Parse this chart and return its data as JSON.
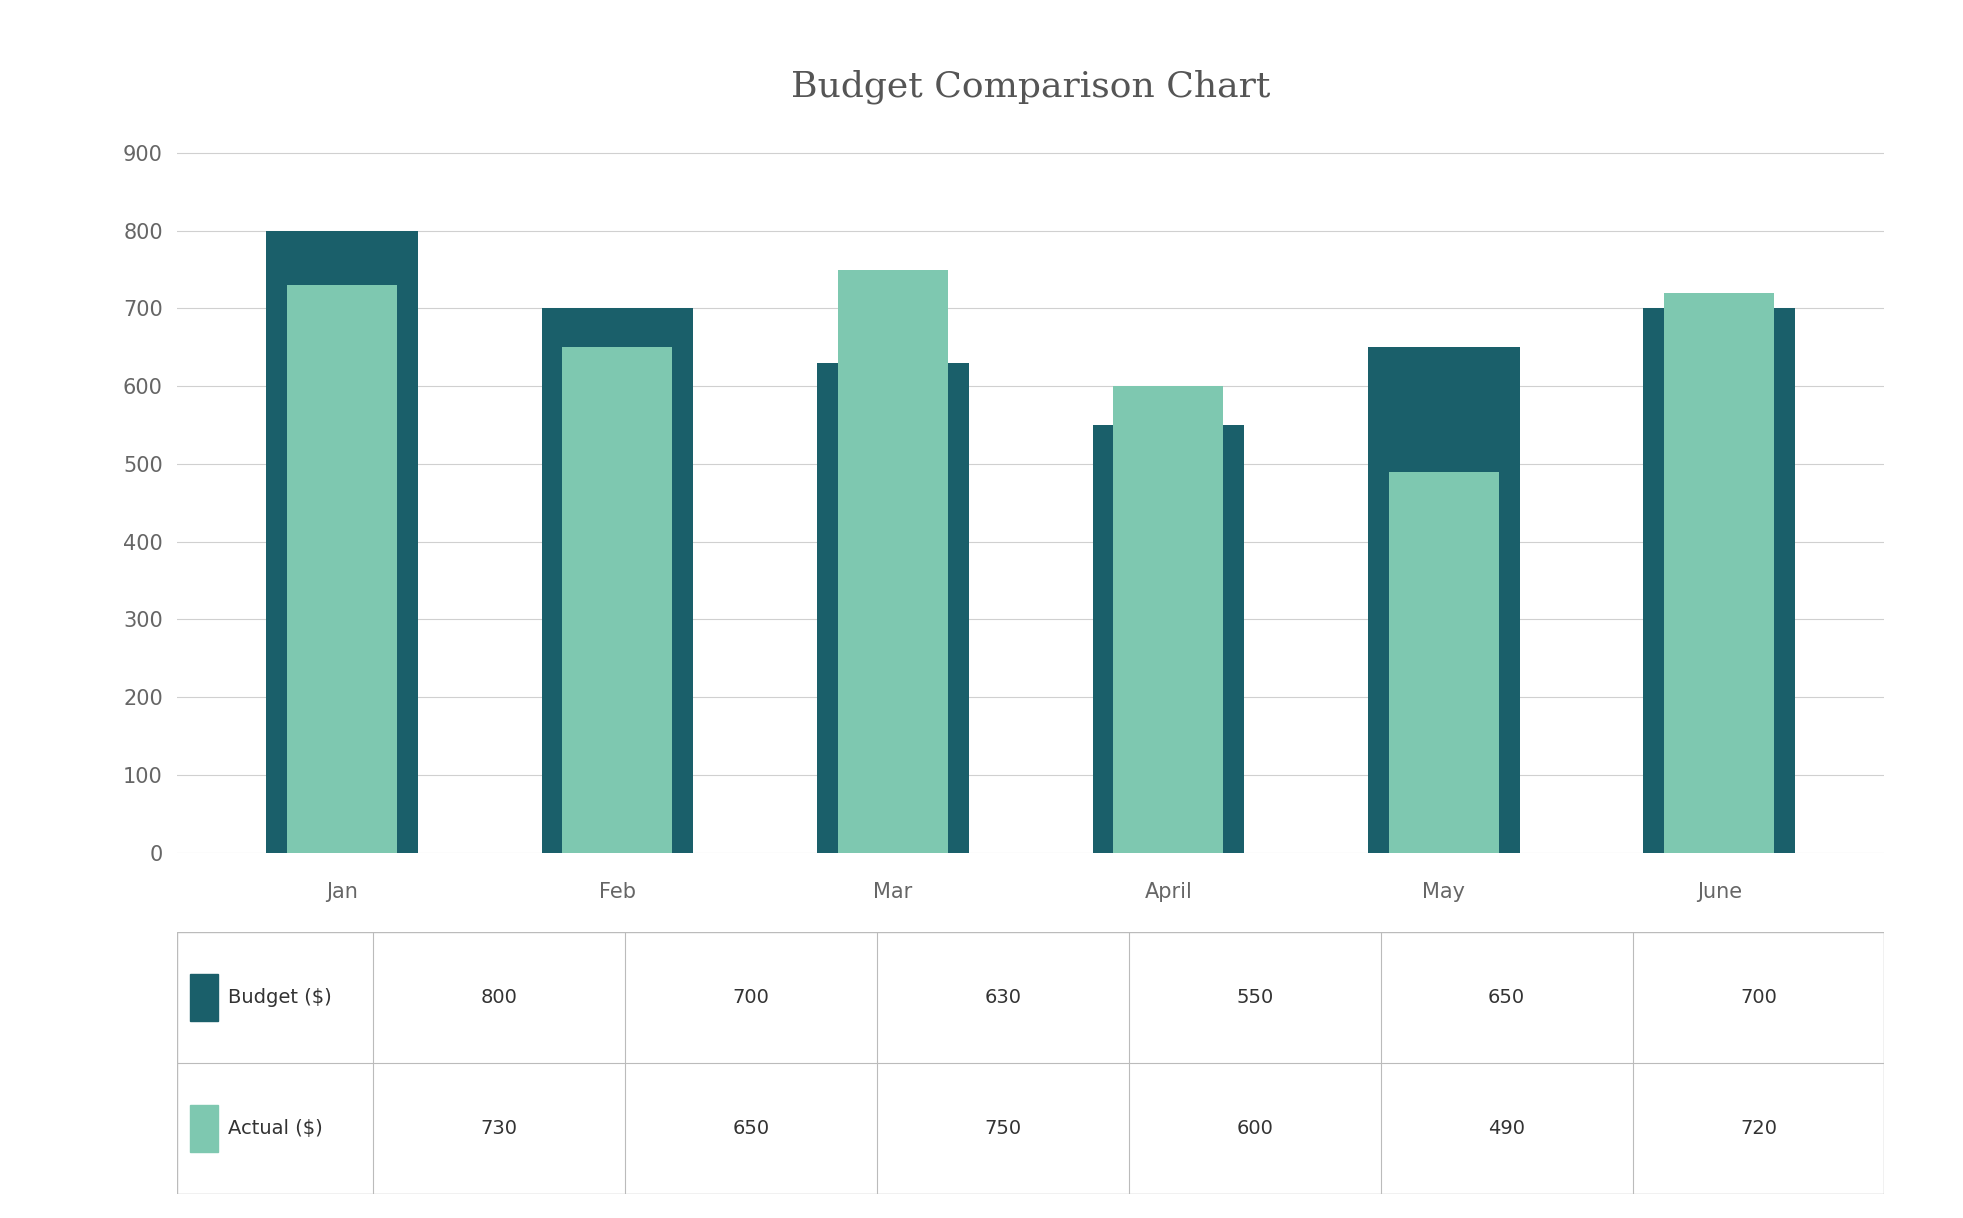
{
  "title": "Budget Comparison Chart",
  "categories": [
    "Jan",
    "Feb",
    "Mar",
    "April",
    "May",
    "June"
  ],
  "budget": [
    800,
    700,
    630,
    550,
    650,
    700
  ],
  "actual": [
    730,
    650,
    750,
    600,
    490,
    720
  ],
  "budget_color": "#1a5f6a",
  "actual_color": "#7ec8b0",
  "ylim": [
    0,
    940
  ],
  "yticks": [
    0,
    100,
    200,
    300,
    400,
    500,
    600,
    700,
    800,
    900
  ],
  "title_fontsize": 26,
  "tick_fontsize": 15,
  "cat_fontsize": 15,
  "table_fontsize": 14,
  "background_color": "#ffffff",
  "budget_bar_width": 0.55,
  "actual_bar_width": 0.4,
  "legend_labels": [
    "Budget ($)",
    "Actual ($)"
  ],
  "grid_color": "#d0d0d0",
  "title_color": "#555555",
  "tick_color": "#666666",
  "table_border_color": "#bbbbbb"
}
